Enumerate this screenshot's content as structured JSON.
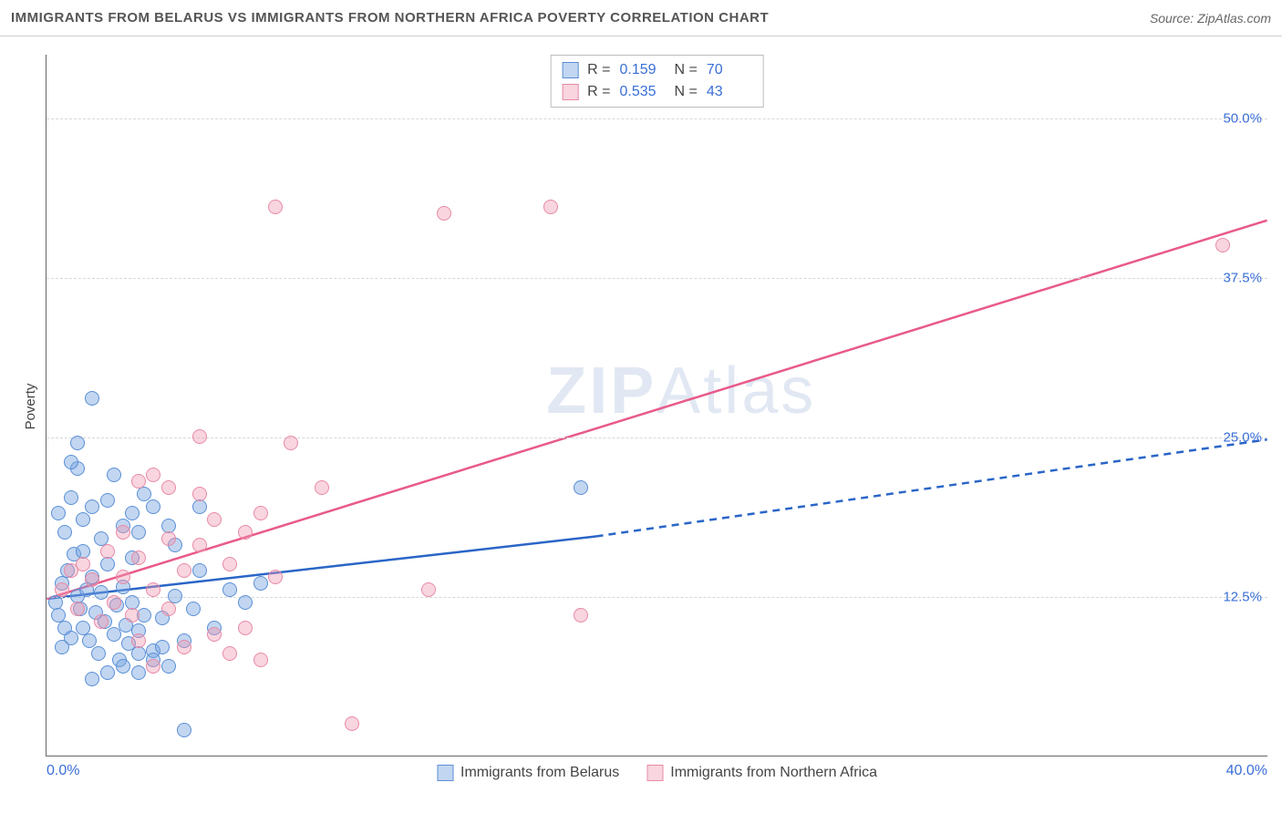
{
  "header": {
    "title": "IMMIGRANTS FROM BELARUS VS IMMIGRANTS FROM NORTHERN AFRICA POVERTY CORRELATION CHART",
    "source_prefix": "Source: ",
    "source_name": "ZipAtlas.com"
  },
  "chart": {
    "type": "scatter",
    "ylabel": "Poverty",
    "background_color": "#ffffff",
    "grid_color": "#d8d8d8",
    "axis_color": "#666666",
    "tick_label_color": "#3a6fd8",
    "xlim": [
      0,
      40
    ],
    "ylim": [
      0,
      55
    ],
    "x_ticks": [
      {
        "value": 0,
        "label": "0.0%"
      },
      {
        "value": 40,
        "label": "40.0%"
      }
    ],
    "y_ticks": [
      {
        "value": 12.5,
        "label": "12.5%"
      },
      {
        "value": 25.0,
        "label": "25.0%"
      },
      {
        "value": 37.5,
        "label": "37.5%"
      },
      {
        "value": 50.0,
        "label": "50.0%"
      }
    ],
    "marker_radius": 8,
    "marker_border_width": 1.5,
    "watermark": "ZIPAtlas",
    "series": [
      {
        "id": "belarus",
        "name": "Immigrants from Belarus",
        "fill_color": "rgba(120,165,225,0.45)",
        "stroke_color": "#5a8fd6",
        "r_value": "0.159",
        "n_value": "70",
        "trend": {
          "color": "#2a65c7",
          "width": 2.5,
          "solid_start": [
            0,
            12.3
          ],
          "solid_end": [
            18,
            17.2
          ],
          "dashed_end": [
            40,
            24.8
          ]
        },
        "points": [
          [
            0.3,
            12.0
          ],
          [
            0.4,
            11.0
          ],
          [
            0.5,
            13.5
          ],
          [
            0.6,
            10.0
          ],
          [
            0.7,
            14.5
          ],
          [
            0.8,
            9.2
          ],
          [
            0.9,
            15.8
          ],
          [
            1.0,
            12.5
          ],
          [
            0.5,
            8.5
          ],
          [
            1.1,
            11.5
          ],
          [
            1.2,
            10.0
          ],
          [
            1.3,
            13.0
          ],
          [
            1.4,
            9.0
          ],
          [
            1.5,
            14.0
          ],
          [
            1.6,
            11.2
          ],
          [
            1.7,
            8.0
          ],
          [
            1.8,
            12.8
          ],
          [
            1.9,
            10.5
          ],
          [
            2.0,
            15.0
          ],
          [
            0.6,
            17.5
          ],
          [
            2.2,
            9.5
          ],
          [
            2.3,
            11.8
          ],
          [
            2.4,
            7.5
          ],
          [
            2.5,
            13.2
          ],
          [
            2.6,
            10.2
          ],
          [
            2.7,
            8.8
          ],
          [
            2.8,
            12.0
          ],
          [
            0.4,
            19.0
          ],
          [
            3.0,
            9.8
          ],
          [
            3.2,
            11.0
          ],
          [
            1.0,
            22.5
          ],
          [
            0.8,
            20.2
          ],
          [
            3.5,
            8.2
          ],
          [
            1.2,
            18.5
          ],
          [
            1.5,
            19.5
          ],
          [
            3.8,
            10.8
          ],
          [
            4.0,
            7.0
          ],
          [
            1.8,
            17.0
          ],
          [
            4.2,
            12.5
          ],
          [
            2.0,
            20.0
          ],
          [
            4.5,
            9.0
          ],
          [
            2.5,
            18.0
          ],
          [
            1.5,
            28.0
          ],
          [
            4.8,
            11.5
          ],
          [
            5.0,
            14.5
          ],
          [
            2.8,
            19.0
          ],
          [
            3.0,
            17.5
          ],
          [
            5.5,
            10.0
          ],
          [
            3.2,
            20.5
          ],
          [
            2.2,
            22.0
          ],
          [
            6.0,
            13.0
          ],
          [
            3.5,
            19.5
          ],
          [
            1.0,
            24.5
          ],
          [
            6.5,
            12.0
          ],
          [
            4.0,
            18.0
          ],
          [
            2.0,
            6.5
          ],
          [
            7.0,
            13.5
          ],
          [
            2.5,
            7.0
          ],
          [
            1.5,
            6.0
          ],
          [
            3.0,
            6.5
          ],
          [
            4.2,
            16.5
          ],
          [
            3.0,
            8.0
          ],
          [
            3.5,
            7.5
          ],
          [
            5.0,
            19.5
          ],
          [
            3.8,
            8.5
          ],
          [
            4.5,
            2.0
          ],
          [
            17.5,
            21.0
          ],
          [
            1.2,
            16.0
          ],
          [
            0.8,
            23.0
          ],
          [
            2.8,
            15.5
          ]
        ]
      },
      {
        "id": "nafrica",
        "name": "Immigrants from Northern Africa",
        "fill_color": "rgba(240,150,175,0.40)",
        "stroke_color": "#e88aa5",
        "r_value": "0.535",
        "n_value": "43",
        "trend": {
          "color": "#e85a8a",
          "width": 2.5,
          "solid_start": [
            0,
            12.3
          ],
          "solid_end": [
            40,
            42.0
          ],
          "dashed_end": null
        },
        "points": [
          [
            0.5,
            13.0
          ],
          [
            0.8,
            14.5
          ],
          [
            1.0,
            11.5
          ],
          [
            1.2,
            15.0
          ],
          [
            1.5,
            13.8
          ],
          [
            1.8,
            10.5
          ],
          [
            2.0,
            16.0
          ],
          [
            2.2,
            12.0
          ],
          [
            2.5,
            14.0
          ],
          [
            2.8,
            11.0
          ],
          [
            3.0,
            15.5
          ],
          [
            3.5,
            13.0
          ],
          [
            4.0,
            17.0
          ],
          [
            4.5,
            14.5
          ],
          [
            5.0,
            16.5
          ],
          [
            3.0,
            21.5
          ],
          [
            5.5,
            18.5
          ],
          [
            6.0,
            15.0
          ],
          [
            3.5,
            22.0
          ],
          [
            6.5,
            17.5
          ],
          [
            7.0,
            19.0
          ],
          [
            4.0,
            21.0
          ],
          [
            7.5,
            14.0
          ],
          [
            5.0,
            20.5
          ],
          [
            3.0,
            9.0
          ],
          [
            4.5,
            8.5
          ],
          [
            5.5,
            9.5
          ],
          [
            6.0,
            8.0
          ],
          [
            7.0,
            7.5
          ],
          [
            3.5,
            7.0
          ],
          [
            5.0,
            25.0
          ],
          [
            8.0,
            24.5
          ],
          [
            9.0,
            21.0
          ],
          [
            12.5,
            13.0
          ],
          [
            17.5,
            11.0
          ],
          [
            7.5,
            43.0
          ],
          [
            13.0,
            42.5
          ],
          [
            16.5,
            43.0
          ],
          [
            10.0,
            2.5
          ],
          [
            38.5,
            40.0
          ],
          [
            4.0,
            11.5
          ],
          [
            6.5,
            10.0
          ],
          [
            2.5,
            17.5
          ]
        ]
      }
    ],
    "stats_legend": {
      "r_label": "R =",
      "n_label": "N ="
    }
  }
}
